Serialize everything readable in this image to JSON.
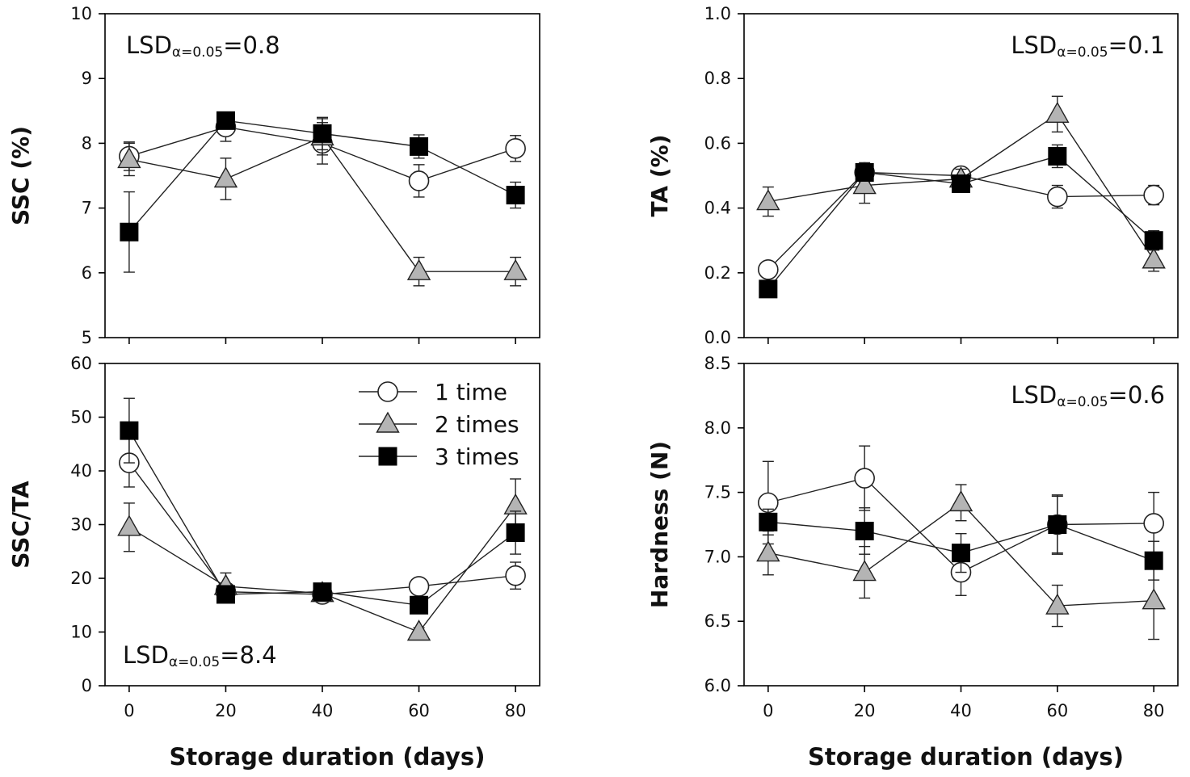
{
  "chart_data": [
    {
      "type": "line",
      "panel": "top-left",
      "ylabel": "SSC (%)",
      "xlabel": "",
      "ylim": [
        5,
        10
      ],
      "yticks": [
        "5",
        "6",
        "7",
        "8",
        "9",
        "10"
      ],
      "xlim": [
        -5,
        85
      ],
      "x": [
        0,
        20,
        40,
        60,
        80
      ],
      "xticks": [],
      "lsd": {
        "prefix": "LSD",
        "sub": "α=0.05",
        "value": "=0.8",
        "position": "top-left"
      },
      "series": [
        {
          "name": "1 time",
          "marker": "circle",
          "values": [
            7.8,
            8.25,
            8.0,
            7.42,
            7.92
          ],
          "errors": [
            0.22,
            0.22,
            0.32,
            0.25,
            0.2
          ]
        },
        {
          "name": "2 times",
          "marker": "triangle",
          "values": [
            7.75,
            7.45,
            8.1,
            6.02,
            6.02
          ],
          "errors": [
            0.25,
            0.32,
            0.28,
            0.22,
            0.22
          ]
        },
        {
          "name": "3 times",
          "marker": "square",
          "values": [
            6.63,
            8.35,
            8.15,
            7.95,
            7.2
          ],
          "errors": [
            0.62,
            0.12,
            0.25,
            0.18,
            0.2
          ]
        }
      ]
    },
    {
      "type": "line",
      "panel": "top-right",
      "ylabel": "TA (%)",
      "xlabel": "",
      "ylim": [
        0,
        1
      ],
      "yticks": [
        "0.0",
        "0.2",
        "0.4",
        "0.6",
        "0.8",
        "1.0"
      ],
      "xlim": [
        -5,
        85
      ],
      "x": [
        0,
        20,
        40,
        60,
        80
      ],
      "xticks": [],
      "lsd": {
        "prefix": "LSD",
        "sub": "α=0.05",
        "value": "=0.1",
        "position": "top-right"
      },
      "series": [
        {
          "name": "1 time",
          "marker": "circle",
          "values": [
            0.21,
            0.51,
            0.5,
            0.435,
            0.44
          ],
          "errors": [
            0.02,
            0.03,
            0.02,
            0.035,
            0.03
          ]
        },
        {
          "name": "2 times",
          "marker": "triangle",
          "values": [
            0.42,
            0.47,
            0.49,
            0.69,
            0.24
          ],
          "errors": [
            0.045,
            0.055,
            0.03,
            0.055,
            0.035
          ]
        },
        {
          "name": "3 times",
          "marker": "square",
          "values": [
            0.15,
            0.51,
            0.475,
            0.56,
            0.3
          ],
          "errors": [
            0.015,
            0.025,
            0.025,
            0.035,
            0.03
          ]
        }
      ]
    },
    {
      "type": "line",
      "panel": "bottom-left",
      "ylabel": "SSC/TA",
      "xlabel": "Storage duration (days)",
      "ylim": [
        0,
        60
      ],
      "yticks": [
        "0",
        "10",
        "20",
        "30",
        "40",
        "50",
        "60"
      ],
      "xlim": [
        -5,
        85
      ],
      "x": [
        0,
        20,
        40,
        60,
        80
      ],
      "xticks": [
        "0",
        "20",
        "40",
        "60",
        "80"
      ],
      "lsd": {
        "prefix": "LSD",
        "sub": "α=0.05",
        "value": "=8.4",
        "position": "bottom-left"
      },
      "series": [
        {
          "name": "1 time",
          "marker": "circle",
          "values": [
            41.5,
            17.5,
            17.0,
            18.5,
            20.5
          ],
          "errors": [
            4.5,
            1.0,
            0.8,
            1.2,
            2.5
          ]
        },
        {
          "name": "2 times",
          "marker": "triangle",
          "values": [
            29.5,
            18.5,
            17.2,
            10.0,
            33.5
          ],
          "errors": [
            4.5,
            2.5,
            1.0,
            0.8,
            5.0
          ]
        },
        {
          "name": "3 times",
          "marker": "square",
          "values": [
            47.5,
            17.0,
            17.5,
            15.0,
            28.5
          ],
          "errors": [
            6.0,
            0.8,
            1.0,
            1.5,
            4.0
          ]
        }
      ]
    },
    {
      "type": "line",
      "panel": "bottom-right",
      "ylabel": "Hardness (N)",
      "xlabel": "Storage duration (days)",
      "ylim": [
        6,
        8.5
      ],
      "yticks": [
        "6.0",
        "6.5",
        "7.0",
        "7.5",
        "8.0",
        "8.5"
      ],
      "xlim": [
        -5,
        85
      ],
      "x": [
        0,
        20,
        40,
        60,
        80
      ],
      "xticks": [
        "0",
        "20",
        "40",
        "60",
        "80"
      ],
      "lsd": {
        "prefix": "LSD",
        "sub": "α=0.05",
        "value": "=0.6",
        "position": "top-right"
      },
      "series": [
        {
          "name": "1 time",
          "marker": "circle",
          "values": [
            7.42,
            7.61,
            6.88,
            7.25,
            7.26
          ],
          "errors": [
            0.32,
            0.25,
            0.18,
            0.23,
            0.24
          ]
        },
        {
          "name": "2 times",
          "marker": "triangle",
          "values": [
            7.03,
            6.88,
            7.42,
            6.62,
            6.66
          ],
          "errors": [
            0.17,
            0.2,
            0.14,
            0.16,
            0.3
          ]
        },
        {
          "name": "3 times",
          "marker": "square",
          "values": [
            7.27,
            7.2,
            7.03,
            7.25,
            6.97
          ],
          "errors": [
            0.1,
            0.18,
            0.15,
            0.22,
            0.15
          ]
        }
      ]
    }
  ],
  "legend": {
    "entries": [
      {
        "label": "1 time",
        "marker": "circle"
      },
      {
        "label": "2 times",
        "marker": "triangle"
      },
      {
        "label": "3 times",
        "marker": "square"
      }
    ],
    "placement": "inside bottom-left panel, top-right"
  },
  "styles": {
    "circle_fill": "#ffffff",
    "triangle_fill": "#b4b4b4",
    "square_fill": "#000000",
    "stroke": "#222222",
    "axis_color": "#000000"
  }
}
